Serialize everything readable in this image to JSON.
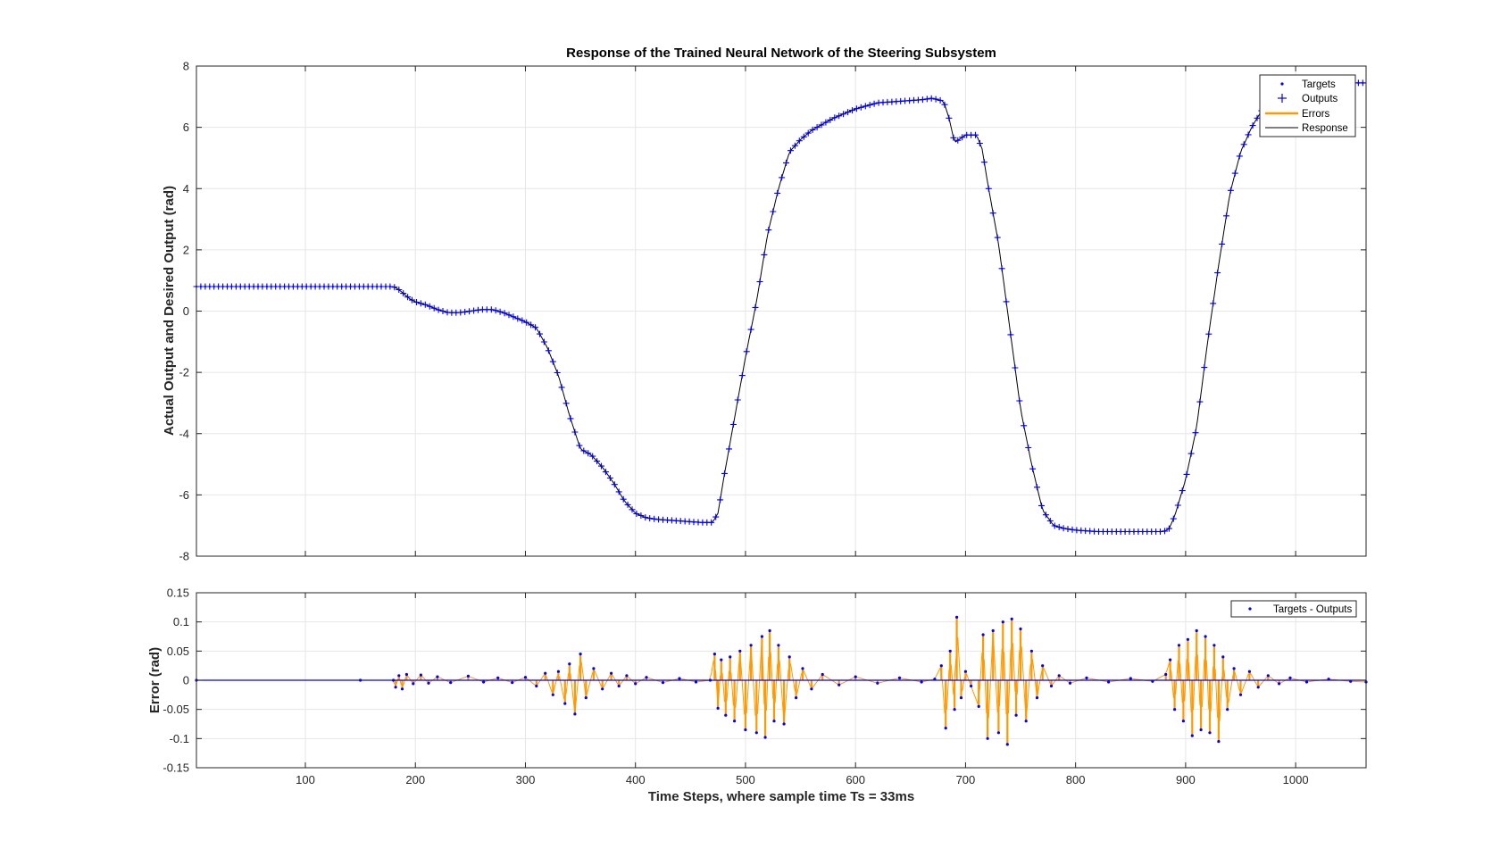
{
  "figure": {
    "title": "Response of the Trained Neural Network of the Steering Subsystem",
    "xlabel": "Time Steps, where sample time Ts = 33ms"
  },
  "colors": {
    "targets": "#0000ff",
    "outputs": "#0000ff",
    "errors": "#ff9900",
    "response": "#000000",
    "grid": "#e6e6e6",
    "axis": "#262626"
  },
  "chart_data": [
    {
      "type": "line",
      "title": "Response of the Trained Neural Network of the Steering Subsystem",
      "xlabel": "",
      "ylabel": "Actual Output and Desired Output (rad)",
      "xlim": [
        1,
        1064
      ],
      "ylim": [
        -8,
        8
      ],
      "xticks": [
        100,
        200,
        300,
        400,
        500,
        600,
        700,
        800,
        900,
        1000
      ],
      "yticks": [
        -8,
        -6,
        -4,
        -2,
        0,
        2,
        4,
        6,
        8
      ],
      "grid": true,
      "legend_position": "top-right",
      "legend": [
        "Targets",
        "Outputs",
        "Errors",
        "Response"
      ],
      "series": [
        {
          "name": "Targets",
          "marker": "point",
          "x": [
            1,
            180,
            185,
            190,
            195,
            200,
            210,
            220,
            230,
            240,
            250,
            260,
            270,
            280,
            290,
            300,
            310,
            320,
            330,
            340,
            350,
            360,
            370,
            380,
            390,
            400,
            410,
            420,
            440,
            460,
            470,
            475,
            480,
            490,
            500,
            510,
            520,
            530,
            540,
            550,
            560,
            580,
            600,
            620,
            640,
            660,
            670,
            680,
            685,
            690,
            700,
            705,
            710,
            715,
            720,
            730,
            740,
            750,
            760,
            770,
            780,
            790,
            800,
            820,
            840,
            860,
            880,
            885,
            890,
            900,
            910,
            920,
            930,
            940,
            950,
            960,
            970,
            980,
            990,
            1000,
            1010,
            1020,
            1030,
            1040,
            1050,
            1064
          ],
          "y": [
            0.8,
            0.8,
            0.7,
            0.55,
            0.4,
            0.3,
            0.2,
            0.05,
            -0.05,
            -0.05,
            0.0,
            0.05,
            0.05,
            -0.05,
            -0.2,
            -0.35,
            -0.55,
            -1.2,
            -2.1,
            -3.4,
            -4.5,
            -4.7,
            -5.1,
            -5.6,
            -6.2,
            -6.6,
            -6.75,
            -6.8,
            -6.85,
            -6.9,
            -6.9,
            -6.6,
            -5.5,
            -3.5,
            -1.5,
            0.3,
            2.5,
            4.0,
            5.2,
            5.6,
            5.9,
            6.3,
            6.6,
            6.8,
            6.85,
            6.9,
            6.95,
            6.85,
            6.3,
            5.5,
            5.75,
            5.75,
            5.75,
            5.3,
            4.2,
            2.2,
            -0.5,
            -3.2,
            -5.0,
            -6.5,
            -7.0,
            -7.1,
            -7.15,
            -7.2,
            -7.2,
            -7.2,
            -7.2,
            -7.1,
            -6.7,
            -5.5,
            -3.8,
            -1.0,
            1.5,
            3.8,
            5.2,
            6.0,
            6.6,
            7.0,
            7.3,
            7.4,
            7.45,
            7.45,
            7.45,
            7.45,
            7.45,
            7.45
          ]
        },
        {
          "name": "Outputs",
          "marker": "plus",
          "x": [
            1,
            180,
            185,
            190,
            195,
            200,
            210,
            220,
            230,
            240,
            250,
            260,
            270,
            280,
            290,
            300,
            310,
            320,
            330,
            340,
            350,
            360,
            370,
            380,
            390,
            400,
            410,
            420,
            440,
            460,
            470,
            475,
            480,
            490,
            500,
            510,
            520,
            530,
            540,
            550,
            560,
            580,
            600,
            620,
            640,
            660,
            670,
            680,
            685,
            690,
            700,
            705,
            710,
            715,
            720,
            730,
            740,
            750,
            760,
            770,
            780,
            790,
            800,
            820,
            840,
            860,
            880,
            885,
            890,
            900,
            910,
            920,
            930,
            940,
            950,
            960,
            970,
            980,
            990,
            1000,
            1010,
            1020,
            1030,
            1040,
            1050,
            1064
          ],
          "y": [
            0.8,
            0.8,
            0.7,
            0.55,
            0.4,
            0.3,
            0.2,
            0.05,
            -0.05,
            -0.05,
            0.0,
            0.05,
            0.05,
            -0.05,
            -0.2,
            -0.35,
            -0.55,
            -1.2,
            -2.1,
            -3.4,
            -4.5,
            -4.7,
            -5.1,
            -5.6,
            -6.2,
            -6.6,
            -6.75,
            -6.8,
            -6.85,
            -6.9,
            -6.9,
            -6.6,
            -5.5,
            -3.5,
            -1.5,
            0.3,
            2.5,
            4.0,
            5.2,
            5.6,
            5.9,
            6.3,
            6.6,
            6.8,
            6.85,
            6.9,
            6.95,
            6.85,
            6.3,
            5.5,
            5.75,
            5.75,
            5.75,
            5.3,
            4.2,
            2.2,
            -0.5,
            -3.2,
            -5.0,
            -6.5,
            -7.0,
            -7.1,
            -7.15,
            -7.2,
            -7.2,
            -7.2,
            -7.2,
            -7.1,
            -6.7,
            -5.5,
            -3.8,
            -1.0,
            1.5,
            3.8,
            5.2,
            6.0,
            6.6,
            7.0,
            7.3,
            7.4,
            7.45,
            7.45,
            7.45,
            7.45,
            7.45,
            7.45
          ]
        }
      ]
    },
    {
      "type": "line",
      "title": "",
      "xlabel": "Time Steps, where sample time Ts = 33ms",
      "ylabel": "Error (rad)",
      "xlim": [
        1,
        1064
      ],
      "ylim": [
        -0.15,
        0.15
      ],
      "xticks": [
        100,
        200,
        300,
        400,
        500,
        600,
        700,
        800,
        900,
        1000
      ],
      "yticks": [
        -0.15,
        -0.1,
        -0.05,
        0,
        0.05,
        0.1,
        0.15
      ],
      "ytick_labels": [
        "-0.15",
        "-0.1",
        "-0.05",
        "0",
        "0.05",
        "0.1",
        "0.15"
      ],
      "grid": true,
      "legend_position": "top-right",
      "legend": [
        "Targets - Outputs"
      ],
      "series": [
        {
          "name": "Targets - Outputs",
          "x": [
            1,
            150,
            180,
            182,
            185,
            188,
            192,
            198,
            205,
            212,
            220,
            232,
            248,
            262,
            275,
            288,
            300,
            310,
            318,
            325,
            330,
            336,
            340,
            345,
            350,
            355,
            362,
            370,
            378,
            385,
            392,
            400,
            410,
            425,
            440,
            455,
            468,
            472,
            475,
            478,
            482,
            486,
            490,
            495,
            500,
            505,
            510,
            515,
            518,
            522,
            526,
            530,
            535,
            540,
            546,
            552,
            560,
            570,
            585,
            600,
            620,
            640,
            660,
            672,
            678,
            682,
            686,
            690,
            692,
            696,
            700,
            705,
            712,
            716,
            720,
            725,
            730,
            734,
            738,
            742,
            746,
            750,
            755,
            760,
            765,
            770,
            778,
            785,
            795,
            810,
            830,
            850,
            870,
            882,
            886,
            890,
            894,
            898,
            902,
            906,
            910,
            914,
            918,
            922,
            926,
            930,
            934,
            938,
            944,
            950,
            958,
            966,
            975,
            985,
            995,
            1010,
            1030,
            1050,
            1064
          ],
          "y": [
            0.0,
            0.0,
            0.0,
            -0.012,
            0.008,
            -0.015,
            0.01,
            -0.006,
            0.009,
            -0.005,
            0.006,
            -0.004,
            0.007,
            -0.003,
            0.004,
            -0.004,
            0.005,
            -0.01,
            0.012,
            -0.025,
            0.015,
            -0.04,
            0.028,
            -0.058,
            0.045,
            -0.03,
            0.02,
            -0.015,
            0.012,
            -0.01,
            0.008,
            -0.006,
            0.005,
            -0.004,
            0.003,
            -0.003,
            0.0,
            0.045,
            -0.048,
            0.035,
            -0.06,
            0.04,
            -0.07,
            0.05,
            -0.085,
            0.06,
            -0.09,
            0.075,
            -0.098,
            0.085,
            -0.07,
            0.06,
            -0.075,
            0.04,
            -0.03,
            0.02,
            -0.015,
            0.01,
            -0.008,
            0.006,
            -0.005,
            0.004,
            -0.003,
            0.002,
            0.025,
            -0.082,
            0.05,
            -0.05,
            0.108,
            -0.03,
            0.015,
            -0.01,
            -0.045,
            0.078,
            -0.1,
            0.085,
            -0.09,
            0.1,
            -0.11,
            0.105,
            -0.06,
            0.088,
            -0.07,
            0.05,
            -0.03,
            0.025,
            -0.01,
            0.008,
            -0.005,
            0.004,
            -0.003,
            0.003,
            -0.002,
            0.01,
            0.035,
            -0.05,
            0.06,
            -0.07,
            0.07,
            -0.095,
            0.085,
            -0.085,
            0.075,
            -0.09,
            0.06,
            -0.105,
            0.04,
            -0.05,
            0.02,
            -0.025,
            0.015,
            -0.012,
            0.008,
            -0.006,
            0.004,
            -0.003,
            0.002,
            -0.002,
            -0.003
          ]
        }
      ]
    }
  ]
}
